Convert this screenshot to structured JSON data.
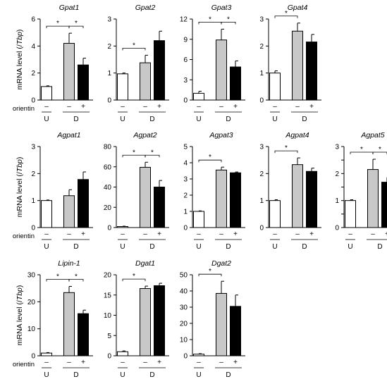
{
  "ylabel_text": "mRNA level (/",
  "ylabel_italic": "Tbp",
  "ylabel_close": ")",
  "treatment_label": "orientin",
  "condition_labels": [
    "–",
    "–",
    "+"
  ],
  "group_labels": [
    "U",
    "D"
  ],
  "colors": {
    "U": "#ffffff",
    "D_vehicle": "#c8c8c8",
    "D_orientin": "#000000"
  },
  "chart_data": [
    {
      "type": "bar",
      "title": "Gpat1",
      "categories": [
        "U",
        "D –",
        "D +"
      ],
      "values": [
        1.0,
        4.2,
        2.6
      ],
      "errors": [
        0.05,
        0.75,
        0.5
      ],
      "ylim": [
        0,
        6
      ],
      "yticks": [
        0,
        2,
        4,
        6
      ],
      "significance": [
        [
          0,
          1
        ],
        [
          1,
          2
        ]
      ]
    },
    {
      "type": "bar",
      "title": "Gpat2",
      "categories": [
        "U",
        "D –",
        "D +"
      ],
      "values": [
        0.97,
        1.38,
        2.2
      ],
      "errors": [
        0.03,
        0.28,
        0.35
      ],
      "ylim": [
        0,
        3
      ],
      "yticks": [
        0,
        1,
        2,
        3
      ],
      "significance": [
        [
          0,
          1
        ]
      ]
    },
    {
      "type": "bar",
      "title": "Gpat3",
      "categories": [
        "U",
        "D –",
        "D +"
      ],
      "values": [
        1.0,
        8.9,
        4.9
      ],
      "errors": [
        0.3,
        1.6,
        0.9
      ],
      "ylim": [
        0,
        12
      ],
      "yticks": [
        0,
        3,
        6,
        9,
        12
      ],
      "significance": [
        [
          0,
          1
        ],
        [
          1,
          2
        ]
      ]
    },
    {
      "type": "bar",
      "title": "Gpat4",
      "categories": [
        "U",
        "D –",
        "D +"
      ],
      "values": [
        1.0,
        2.55,
        2.15
      ],
      "errors": [
        0.08,
        0.3,
        0.28
      ],
      "ylim": [
        0,
        3
      ],
      "yticks": [
        0,
        1,
        2,
        3
      ],
      "significance": [
        [
          0,
          1
        ]
      ]
    },
    {
      "type": "bar",
      "title": "Agpat1",
      "categories": [
        "U",
        "D –",
        "D +"
      ],
      "values": [
        1.0,
        1.18,
        1.78
      ],
      "errors": [
        0.02,
        0.22,
        0.28
      ],
      "ylim": [
        0,
        3
      ],
      "yticks": [
        0,
        1,
        2,
        3
      ],
      "significance": []
    },
    {
      "type": "bar",
      "title": "Agpat2",
      "categories": [
        "U",
        "D –",
        "D +"
      ],
      "values": [
        1.0,
        59.5,
        40.0
      ],
      "errors": [
        0.4,
        5.0,
        6.5
      ],
      "ylim": [
        0,
        80
      ],
      "yticks": [
        0,
        20,
        40,
        60,
        80
      ],
      "significance": [
        [
          0,
          1
        ],
        [
          1,
          2
        ]
      ]
    },
    {
      "type": "bar",
      "title": "Agpat3",
      "categories": [
        "U",
        "D –",
        "D +"
      ],
      "values": [
        1.0,
        3.55,
        3.38
      ],
      "errors": [
        0.03,
        0.18,
        0.05
      ],
      "ylim": [
        0,
        5
      ],
      "yticks": [
        0,
        1,
        2,
        3,
        4,
        5
      ],
      "significance": [
        [
          0,
          1
        ]
      ]
    },
    {
      "type": "bar",
      "title": "Agpat4",
      "categories": [
        "U",
        "D –",
        "D +"
      ],
      "values": [
        1.0,
        2.33,
        2.08
      ],
      "errors": [
        0.03,
        0.25,
        0.12
      ],
      "ylim": [
        0,
        3
      ],
      "yticks": [
        0,
        1,
        2,
        3
      ],
      "significance": [
        [
          0,
          1
        ]
      ]
    },
    {
      "type": "bar",
      "title": "Agpat5",
      "categories": [
        "U",
        "D –",
        "D +"
      ],
      "values": [
        1.0,
        2.15,
        1.68
      ],
      "errors": [
        0.03,
        0.38,
        0.18
      ],
      "ylim": [
        0,
        3
      ],
      "yticks": [
        0,
        0.5,
        1,
        1.5,
        2,
        2.5,
        3
      ],
      "ytick_labels": [
        "0",
        "",
        "1",
        "",
        "2",
        "",
        "3"
      ],
      "significance": [
        [
          0,
          1
        ],
        [
          1,
          2
        ]
      ]
    },
    {
      "type": "bar",
      "title": "Lipin-1",
      "categories": [
        "U",
        "D –",
        "D +"
      ],
      "values": [
        1.0,
        23.4,
        15.6
      ],
      "errors": [
        0.2,
        2.3,
        1.3
      ],
      "ylim": [
        0,
        30
      ],
      "yticks": [
        0,
        10,
        20,
        30
      ],
      "significance": [
        [
          0,
          1
        ],
        [
          1,
          2
        ]
      ]
    },
    {
      "type": "bar",
      "title": "Dgat1",
      "categories": [
        "U",
        "D –",
        "D +"
      ],
      "values": [
        1.0,
        16.6,
        17.3
      ],
      "errors": [
        0.2,
        0.6,
        0.6
      ],
      "ylim": [
        0,
        20
      ],
      "yticks": [
        0,
        5,
        10,
        15,
        20
      ],
      "significance": [
        [
          0,
          1
        ]
      ]
    },
    {
      "type": "bar",
      "title": "Dgat2",
      "categories": [
        "U",
        "D –",
        "D +"
      ],
      "values": [
        1.0,
        38.5,
        30.5
      ],
      "errors": [
        0.3,
        7.5,
        7.0
      ],
      "ylim": [
        0,
        50
      ],
      "yticks": [
        0,
        10,
        20,
        30,
        40,
        50
      ],
      "significance": [
        [
          0,
          1
        ]
      ]
    }
  ]
}
